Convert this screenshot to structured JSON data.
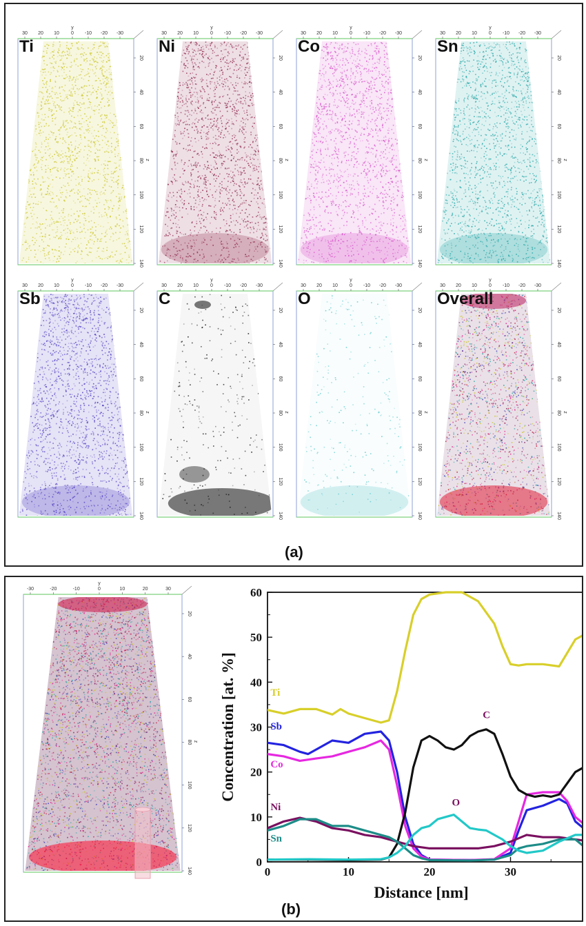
{
  "panel_a": {
    "caption": "(a)",
    "axis_ticks_top": [
      "30",
      "20",
      "10",
      "0",
      "-10",
      "-20",
      "-30"
    ],
    "axis_ticks_side": [
      "20",
      "40",
      "60",
      "80",
      "100",
      "120",
      "140"
    ],
    "axis_y_letter": "y",
    "axis_z_letter": "z",
    "maps": [
      {
        "label": "Ti",
        "color": "#c9c420",
        "density": 1.0
      },
      {
        "label": "Ni",
        "color": "#8a1f45",
        "density": 1.0
      },
      {
        "label": "Co",
        "color": "#d64fc8",
        "density": 1.0
      },
      {
        "label": "Sn",
        "color": "#1fa3a3",
        "density": 1.0
      },
      {
        "label": "Sb",
        "color": "#4a38c0",
        "density": 1.0
      },
      {
        "label": "C",
        "color": "#111111",
        "density": 0.15
      },
      {
        "label": "O",
        "color": "#5ec8cc",
        "density": 0.15
      },
      {
        "label": "Overall",
        "color": "#6b2a5a",
        "density": 1.0
      }
    ]
  },
  "panel_b": {
    "caption": "(b)",
    "recon_ticks_top": [
      "-30",
      "-20",
      "-10",
      "0",
      "10",
      "20",
      "30"
    ],
    "recon_ticks_side": [
      "20",
      "40",
      "60",
      "80",
      "100",
      "120",
      "140"
    ],
    "recon_axis_letter": "y",
    "recon_z_letter": "z"
  },
  "chart_data": {
    "type": "line",
    "xlabel": "Distance [nm]",
    "ylabel": "Concentration [at. %]",
    "xlim": [
      0,
      40
    ],
    "ylim": [
      0,
      60
    ],
    "xticks": [
      "0",
      "10",
      "20",
      "30",
      "40"
    ],
    "yticks": [
      "0",
      "10",
      "20",
      "30",
      "40",
      "50",
      "60"
    ],
    "series": [
      {
        "name": "Ti",
        "color": "#d8cf2a",
        "x": [
          0,
          2,
          4,
          6,
          8,
          9,
          10,
          12,
          14,
          15,
          16,
          17,
          18,
          19,
          20,
          22,
          24,
          26,
          28,
          29,
          30,
          31,
          32,
          34,
          36,
          38,
          39,
          40
        ],
        "y": [
          33.8,
          33,
          34,
          34,
          32.8,
          34,
          33,
          32,
          31,
          31.5,
          38,
          47,
          55,
          58.5,
          59.5,
          60,
          60,
          58,
          53,
          48,
          44,
          43.7,
          44,
          44,
          43.5,
          49.5,
          50.5,
          50
        ]
      },
      {
        "name": "Sb",
        "color": "#2323e0",
        "x": [
          0,
          2,
          4,
          5,
          6,
          8,
          10,
          12,
          14,
          15,
          16,
          17,
          18,
          19,
          20,
          25,
          28,
          30,
          31,
          32,
          34,
          36,
          37,
          38,
          39,
          40
        ],
        "y": [
          26.5,
          26,
          24.5,
          24,
          25,
          27,
          26.5,
          28.5,
          29,
          27,
          20,
          10,
          4,
          1.5,
          0.5,
          0.4,
          0.5,
          2,
          7,
          11.5,
          12.5,
          14,
          13,
          9,
          7.5,
          7
        ]
      },
      {
        "name": "Co",
        "color": "#e628e0",
        "x": [
          0,
          2,
          4,
          6,
          8,
          10,
          12,
          14,
          15,
          16,
          17,
          18,
          19,
          20,
          25,
          28,
          30,
          31,
          32,
          34,
          36,
          37,
          38,
          39,
          40
        ],
        "y": [
          24,
          23.5,
          22.5,
          23,
          23.5,
          24.5,
          25.5,
          27,
          25,
          17,
          8,
          3,
          1.2,
          0.5,
          0.4,
          0.6,
          3,
          9,
          15,
          15.5,
          15.5,
          13.5,
          10,
          8.5,
          8.5
        ]
      },
      {
        "name": "C",
        "color": "#111111",
        "x": [
          0,
          5,
          10,
          14,
          15,
          16,
          17,
          18,
          19,
          20,
          21,
          22,
          23,
          24,
          25,
          26,
          27,
          28,
          29,
          30,
          31,
          32,
          33,
          34,
          35,
          36,
          37,
          38,
          39,
          40
        ],
        "y": [
          0.5,
          0.5,
          0.4,
          0.5,
          1,
          4,
          11,
          21,
          27,
          28,
          27,
          25.5,
          25,
          26,
          28,
          29,
          29.5,
          28.5,
          24,
          19,
          16,
          15,
          14.5,
          14.8,
          14.5,
          15,
          17.5,
          20,
          21,
          21
        ]
      },
      {
        "name": "Ni",
        "color": "#7a1060",
        "x": [
          0,
          2,
          4,
          6,
          8,
          10,
          12,
          14,
          16,
          18,
          20,
          22,
          24,
          26,
          28,
          30,
          32,
          34,
          36,
          38,
          40
        ],
        "y": [
          7.5,
          9,
          9.8,
          9,
          7.5,
          7,
          6,
          5.5,
          4.5,
          3.5,
          3,
          3,
          3,
          3,
          3.5,
          4.5,
          6,
          5.5,
          5.5,
          5,
          4.5
        ]
      },
      {
        "name": "Sn",
        "color": "#1d8c88",
        "x": [
          0,
          2,
          4,
          6,
          8,
          10,
          12,
          14,
          15,
          16,
          17,
          18,
          19,
          20,
          25,
          28,
          30,
          31,
          32,
          34,
          36,
          38,
          39,
          40
        ],
        "y": [
          7,
          8,
          9.5,
          9.5,
          8,
          8,
          7,
          6,
          5.5,
          4.5,
          3,
          1.5,
          0.8,
          0.4,
          0.3,
          0.5,
          1.5,
          3,
          3.5,
          4,
          5,
          5,
          3.5,
          3
        ]
      },
      {
        "name": "O",
        "color": "#22c8c8",
        "x": [
          0,
          5,
          10,
          14,
          15,
          16,
          17,
          18,
          19,
          20,
          21,
          22,
          23,
          24,
          25,
          26,
          27,
          28,
          29,
          30,
          31,
          32,
          34,
          36,
          38,
          40
        ],
        "y": [
          0.5,
          0.6,
          0.5,
          0.6,
          1,
          2,
          3.5,
          6,
          7.5,
          8,
          9.5,
          10,
          10.5,
          9,
          7.5,
          7.2,
          7,
          6,
          5,
          3.5,
          2.5,
          2,
          2.5,
          4.5,
          6,
          6
        ]
      }
    ],
    "annotations": [
      {
        "text": "Ti",
        "x": 0.2,
        "y": 37,
        "color": "#d8cf2a"
      },
      {
        "text": "Sb",
        "x": 0.2,
        "y": 29.5,
        "color": "#2323e0"
      },
      {
        "text": "Co",
        "x": 0.2,
        "y": 21,
        "color": "#e628e0"
      },
      {
        "text": "Ni",
        "x": 0.2,
        "y": 11.5,
        "color": "#7a1060"
      },
      {
        "text": "Sn",
        "x": 0.2,
        "y": 4.5,
        "color": "#1d8c88"
      },
      {
        "text": "C",
        "x": 26.4,
        "y": 32,
        "color": "#7a1060"
      },
      {
        "text": "O",
        "x": 22.6,
        "y": 12.5,
        "color": "#7a1060"
      }
    ]
  }
}
